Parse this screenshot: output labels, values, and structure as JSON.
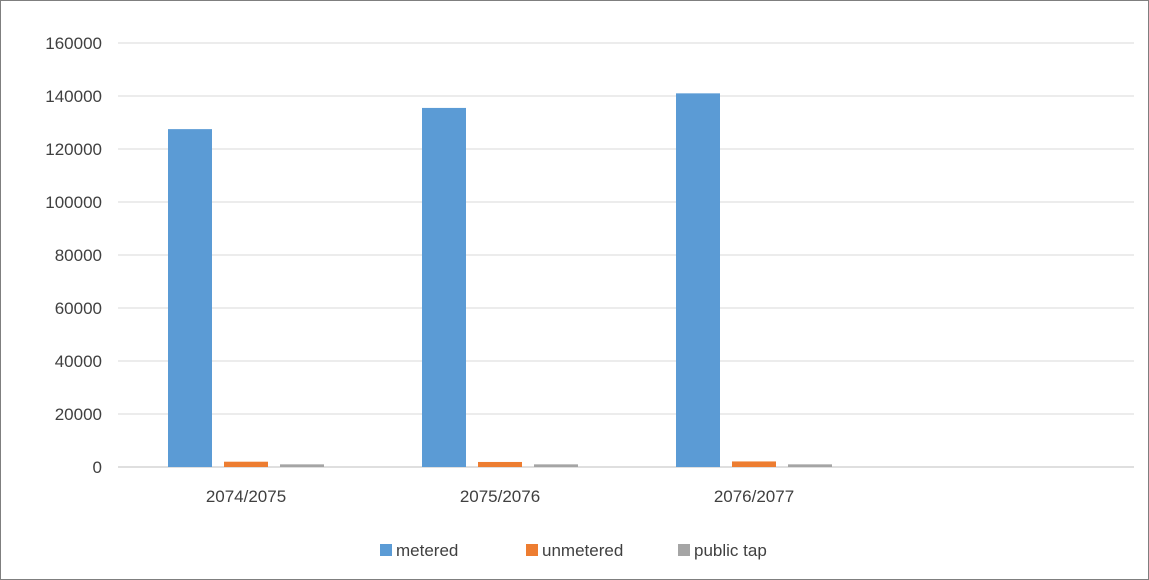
{
  "chart_data": {
    "type": "bar",
    "title": "",
    "xlabel": "",
    "ylabel": "",
    "categories": [
      "2074/2075",
      "2075/2076",
      "2076/2077",
      ""
    ],
    "series": [
      {
        "name": "metered",
        "color": "#5b9bd5",
        "values": [
          127500,
          135500,
          141000,
          null
        ]
      },
      {
        "name": "unmetered",
        "color": "#ed7d31",
        "values": [
          2000,
          1900,
          2100,
          null
        ]
      },
      {
        "name": "public tap",
        "color": "#a5a5a5",
        "values": [
          1000,
          1000,
          1000,
          null
        ]
      }
    ],
    "ylim": [
      0,
      160000
    ],
    "yticks": [
      0,
      20000,
      40000,
      60000,
      80000,
      100000,
      120000,
      140000,
      160000
    ],
    "ytick_labels": [
      "0",
      "20000",
      "40000",
      "60000",
      "80000",
      "100000",
      "120000",
      "140000",
      "160000"
    ],
    "grid": true,
    "legend_position": "bottom"
  }
}
